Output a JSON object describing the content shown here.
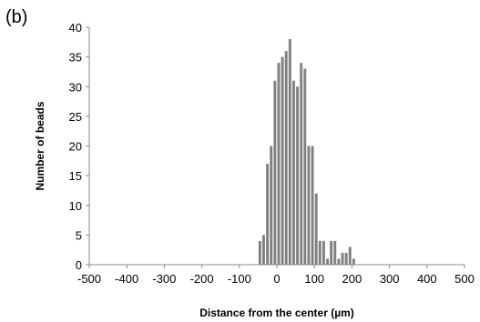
{
  "panel_label": "(b)",
  "chart_data": {
    "type": "bar",
    "xlabel": "Distance from the center (µm)",
    "ylabel": "Number of beads",
    "xlim": [
      -500,
      500
    ],
    "ylim": [
      0,
      40
    ],
    "x_ticks": [
      "-500",
      "-400",
      "-300",
      "-200",
      "-100",
      "0",
      "100",
      "200",
      "300",
      "400",
      "500"
    ],
    "y_ticks": [
      "0",
      "5",
      "10",
      "15",
      "20",
      "25",
      "30",
      "35",
      "40"
    ],
    "bin_width": 10,
    "grid": false,
    "bar_color": "#808080",
    "bins_x": [
      -50,
      -40,
      -30,
      -20,
      -10,
      0,
      10,
      20,
      30,
      40,
      50,
      60,
      70,
      80,
      90,
      100,
      110,
      120,
      130,
      140,
      150,
      160,
      170,
      180,
      190,
      200,
      210
    ],
    "values": [
      4,
      5,
      17,
      20,
      31,
      34,
      35,
      36,
      38,
      31,
      30,
      34,
      33,
      20,
      20,
      12,
      4,
      4,
      1,
      4,
      4,
      1,
      2,
      2,
      3,
      1,
      0
    ]
  }
}
